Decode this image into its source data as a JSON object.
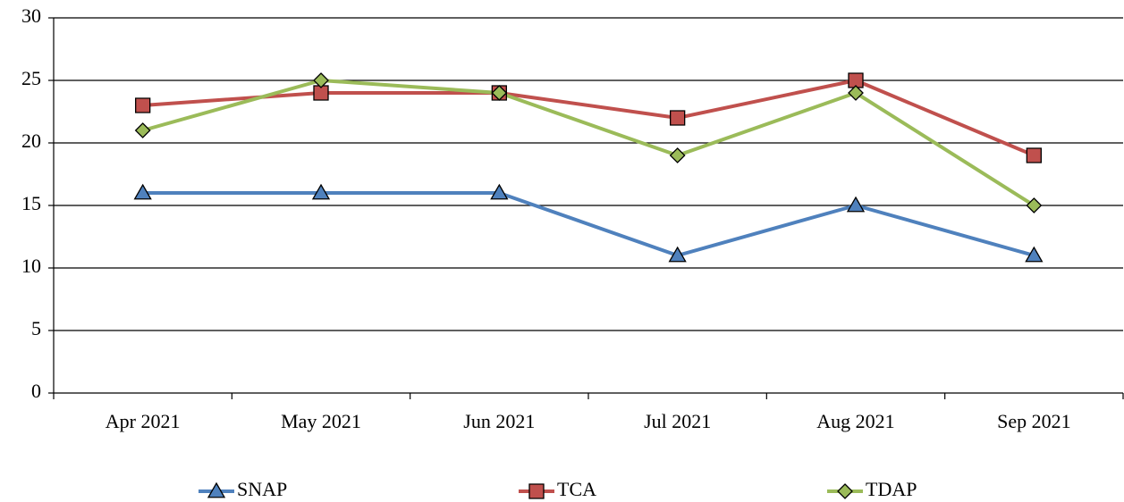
{
  "chart_data": {
    "type": "line",
    "categories": [
      "Apr 2021",
      "May 2021",
      "Jun 2021",
      "Jul 2021",
      "Aug 2021",
      "Sep 2021"
    ],
    "series": [
      {
        "name": "SNAP",
        "color": "#4f81bd",
        "marker": "triangle",
        "values": [
          16,
          16,
          16,
          11,
          15,
          11
        ]
      },
      {
        "name": "TCA",
        "color": "#c0504d",
        "marker": "square",
        "values": [
          23,
          24,
          24,
          22,
          25,
          19
        ]
      },
      {
        "name": "TDAP",
        "color": "#9bbb59",
        "marker": "diamond",
        "values": [
          21,
          25,
          24,
          19,
          24,
          15
        ]
      }
    ],
    "ylim": [
      0,
      30
    ],
    "yticks": [
      0,
      5,
      10,
      15,
      20,
      25,
      30
    ],
    "grid": true,
    "legend": "bottom"
  }
}
